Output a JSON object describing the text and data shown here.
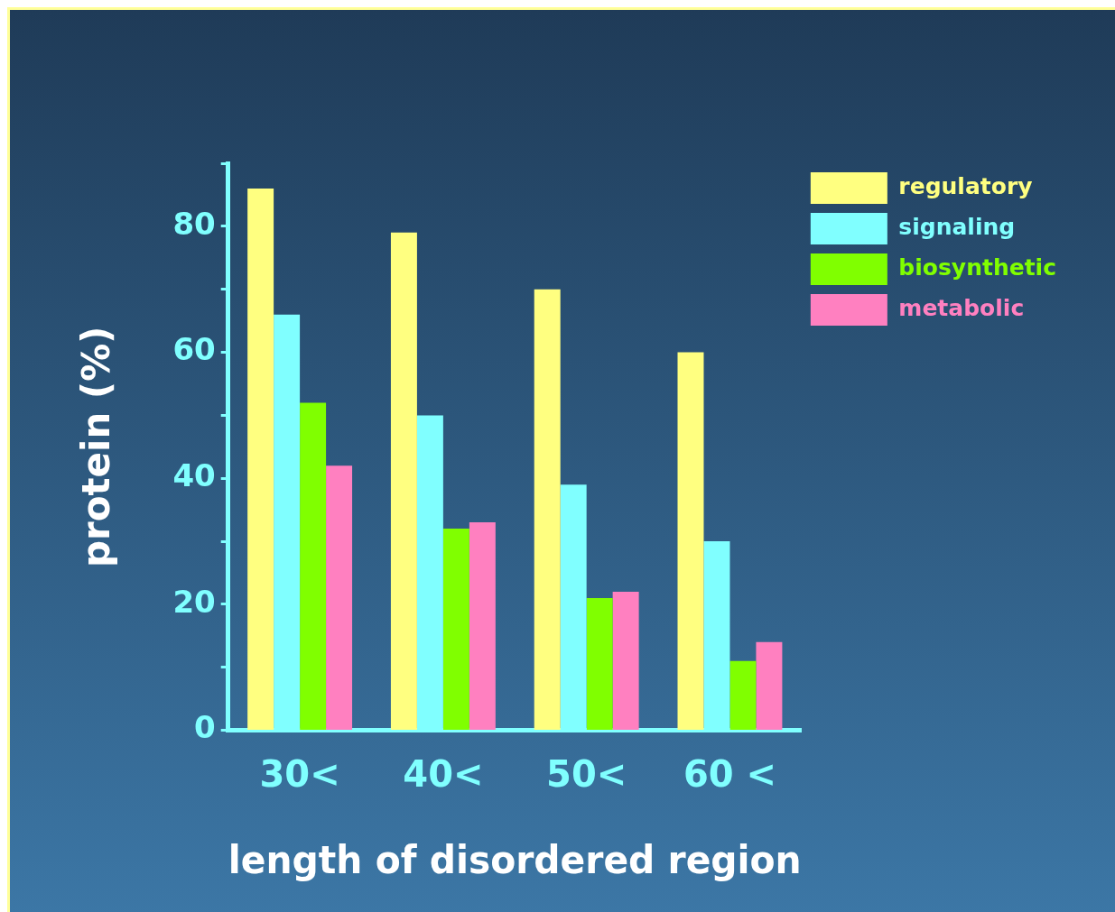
{
  "chart_data": {
    "type": "bar",
    "xlabel": "length of disordered region",
    "ylabel": "protein (%)",
    "categories": [
      "30<",
      "40<",
      "50<",
      "60 <"
    ],
    "series": [
      {
        "name": "regulatory",
        "color": "#ffff80",
        "values": [
          86,
          79,
          70,
          60
        ]
      },
      {
        "name": "signaling",
        "color": "#80ffff",
        "values": [
          66,
          50,
          39,
          30
        ]
      },
      {
        "name": "biosynthetic",
        "color": "#80ff00",
        "values": [
          52,
          32,
          21,
          11
        ]
      },
      {
        "name": "metabolic",
        "color": "#ff80c0",
        "values": [
          42,
          33,
          22,
          14
        ]
      }
    ],
    "ylim": [
      0,
      90
    ],
    "yticks": [
      0,
      {
        "value": 10,
        "label": null
      },
      20,
      {
        "value": 30,
        "label": null
      },
      40,
      {
        "value": 50,
        "label": null
      },
      60,
      {
        "value": 70,
        "label": null
      },
      80,
      {
        "value": 90,
        "label": null
      }
    ],
    "grid": false,
    "legend": "top right"
  }
}
